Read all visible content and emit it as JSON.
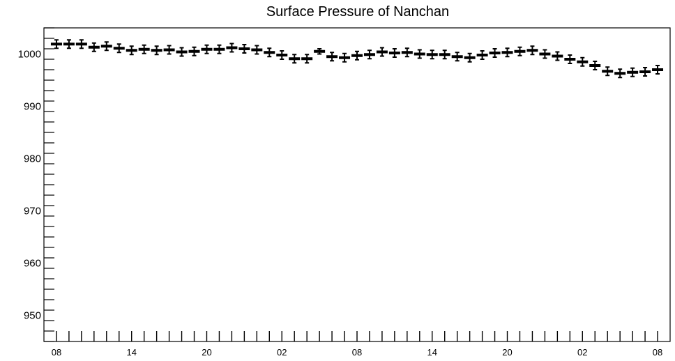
{
  "chart_data": {
    "type": "scatter",
    "title": "Surface Pressure of Nanchan",
    "xlabel": "",
    "ylabel": "",
    "ylim": [
      945,
      1005
    ],
    "yticks": [
      950,
      960,
      970,
      980,
      990,
      1000
    ],
    "xtick_labels": [
      {
        "index": 0,
        "label": "08"
      },
      {
        "index": 6,
        "label": "14"
      },
      {
        "index": 12,
        "label": "20"
      },
      {
        "index": 18,
        "label": "02"
      },
      {
        "index": 24,
        "label": "08"
      },
      {
        "index": 30,
        "label": "14"
      },
      {
        "index": 36,
        "label": "20"
      },
      {
        "index": 42,
        "label": "02"
      },
      {
        "index": 48,
        "label": "08"
      }
    ],
    "x_index_range": [
      -1,
      49
    ],
    "grid": false,
    "series": [
      {
        "values": [
          1001.9,
          1001.9,
          1001.9,
          1001.3,
          1001.5,
          1001.1,
          1000.7,
          1000.9,
          1000.7,
          1000.8,
          1000.4,
          1000.5,
          1000.9,
          1000.9,
          1001.2,
          1001.0,
          1000.8,
          1000.3,
          999.8,
          999.1,
          999.1,
          1000.5,
          999.5,
          999.3,
          999.7,
          999.9,
          1000.4,
          1000.2,
          1000.3,
          1000.0,
          999.9,
          999.9,
          999.5,
          999.3,
          999.8,
          1000.2,
          1000.3,
          1000.5,
          1000.7,
          1000.0,
          999.6,
          999.0,
          998.5,
          997.8,
          996.7,
          996.3,
          996.5,
          996.6,
          997.0
        ],
        "error": [
          0.8,
          0.8,
          0.8,
          0.8,
          0.8,
          0.8,
          0.8,
          0.8,
          0.8,
          0.8,
          0.8,
          0.8,
          0.8,
          0.8,
          0.8,
          0.8,
          0.8,
          0.8,
          0.8,
          0.8,
          0.8,
          0.5,
          0.8,
          0.8,
          0.8,
          0.8,
          0.8,
          0.8,
          0.8,
          0.8,
          0.8,
          0.8,
          0.8,
          0.8,
          0.8,
          0.8,
          0.8,
          0.8,
          0.8,
          0.8,
          0.8,
          0.8,
          0.8,
          0.8,
          0.8,
          0.8,
          0.8,
          0.8,
          0.8
        ]
      }
    ]
  }
}
